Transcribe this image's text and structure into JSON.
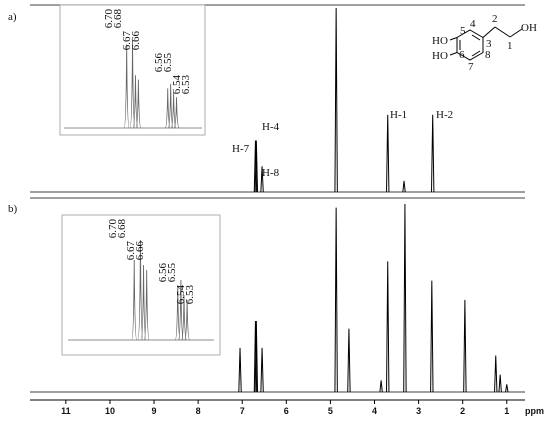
{
  "structure": {
    "labels": [
      "HO",
      "HO",
      "5",
      "4",
      "3",
      "2",
      "1",
      "OH",
      "6",
      "7",
      "8"
    ]
  },
  "chart_data": [
    {
      "type": "spectrum",
      "panel_label": "a)",
      "xlim": [
        11.7,
        0.7
      ],
      "ylim": [
        0,
        100
      ],
      "color": "#000000",
      "x": [
        6.7,
        6.68,
        6.55,
        4.87,
        3.7,
        3.33,
        2.68
      ],
      "values": [
        28,
        28,
        14,
        100,
        42,
        6,
        42
      ],
      "annotations": [
        "H-7",
        "H-4",
        "H-8",
        "H-1",
        "H-2"
      ]
    },
    {
      "type": "spectrum",
      "panel_label": "b)",
      "xlim": [
        11.7,
        0.7
      ],
      "ylim": [
        0,
        100
      ],
      "color": "#000000",
      "xlabel": "ppm",
      "xticks": [
        11,
        10,
        9,
        8,
        7,
        6,
        5,
        4,
        3,
        2,
        1
      ],
      "x": [
        7.05,
        6.7,
        6.68,
        6.55,
        4.87,
        4.58,
        3.85,
        3.7,
        3.31,
        2.7,
        1.95,
        1.25,
        1.15,
        1.0
      ],
      "values": [
        23,
        37,
        37,
        23,
        96,
        33,
        6,
        68,
        98,
        58,
        48,
        19,
        9,
        4
      ]
    },
    {
      "type": "inset",
      "xlim": [
        6.9,
        6.45
      ],
      "ylim": [
        0,
        100
      ],
      "color": "#666666",
      "x": [
        6.7,
        6.68,
        6.67,
        6.66,
        6.56,
        6.55,
        6.54,
        6.53
      ],
      "values": [
        95,
        100,
        60,
        55,
        45,
        50,
        40,
        35
      ],
      "peak_labels": [
        "6.70",
        "6.68",
        "6.67",
        "6.66",
        "6.56",
        "6.55",
        "6.54",
        "6.53"
      ]
    },
    {
      "type": "inset",
      "xlim": [
        6.9,
        6.45
      ],
      "ylim": [
        0,
        100
      ],
      "color": "#666666",
      "x": [
        6.7,
        6.68,
        6.67,
        6.66,
        6.56,
        6.55,
        6.54,
        6.53
      ],
      "values": [
        80,
        100,
        75,
        70,
        55,
        60,
        45,
        40
      ],
      "peak_labels": [
        "6.70",
        "6.68",
        "6.67",
        "6.66",
        "6.56",
        "6.55",
        "6.54",
        "6.53"
      ]
    }
  ]
}
